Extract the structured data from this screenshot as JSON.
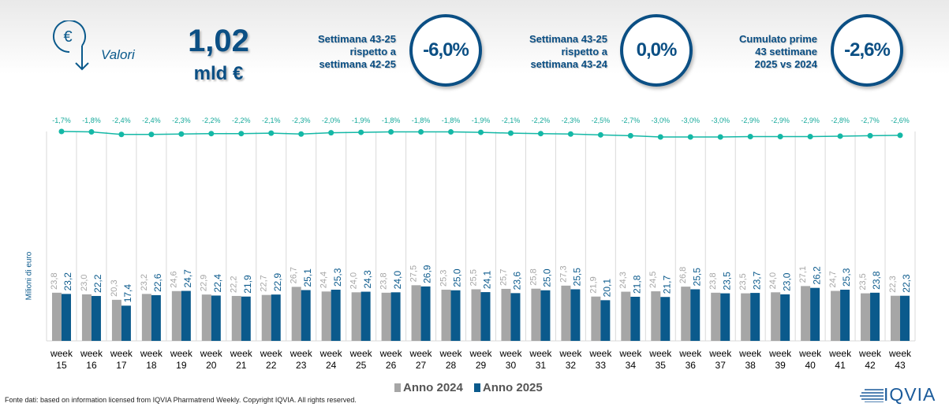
{
  "header": {
    "icon": "euro-down-arrow-icon",
    "section_label": "Valori",
    "total_value": "1,02",
    "total_unit": "mld €",
    "kpis": [
      {
        "label_lines": [
          "Settimana 43-25",
          "rispetto a",
          "settimana 42-25"
        ],
        "value": "-6,0%"
      },
      {
        "label_lines": [
          "Settimana 43-25",
          "rispetto a",
          "settimana 43-24"
        ],
        "value": "0,0%"
      },
      {
        "label_lines": [
          "Cumulato prime",
          "43 settimane",
          "2025 vs 2024"
        ],
        "value": "-2,6%"
      }
    ]
  },
  "chart_data": {
    "type": "bar",
    "ylabel": "Milioni di euro",
    "categories": [
      "week 15",
      "week 16",
      "week 17",
      "week 18",
      "week 19",
      "week 20",
      "week 21",
      "week 22",
      "week 23",
      "week 24",
      "week 25",
      "week 26",
      "week 27",
      "week 28",
      "week 29",
      "week 30",
      "week 31",
      "week 32",
      "week 33",
      "week 34",
      "week 35",
      "week 36",
      "week 37",
      "week 38",
      "week 39",
      "week 40",
      "week 41",
      "week 42",
      "week 43"
    ],
    "series": [
      {
        "name": "Anno 2024",
        "color": "#a6a6a6",
        "values": [
          23.8,
          23.0,
          20.3,
          23.2,
          24.6,
          22.9,
          22.2,
          22.7,
          26.7,
          24.4,
          24.0,
          23.8,
          27.5,
          25.3,
          25.5,
          25.7,
          25.8,
          27.3,
          21.9,
          24.3,
          24.5,
          26.8,
          23.8,
          23.5,
          24.0,
          27.1,
          24.7,
          23.5,
          22.3
        ]
      },
      {
        "name": "Anno 2025",
        "color": "#0b5a8c",
        "values": [
          23.2,
          22.2,
          17.4,
          22.6,
          24.7,
          22.4,
          21.9,
          22.9,
          25.1,
          25.3,
          24.3,
          24.0,
          26.9,
          25.0,
          24.1,
          23.6,
          25.0,
          25.5,
          20.1,
          21.8,
          21.7,
          25.5,
          23.5,
          23.7,
          23.0,
          26.2,
          25.3,
          23.8,
          22.3
        ]
      }
    ],
    "cumulative_change_line": {
      "color": "#14b8a6",
      "unit": "%",
      "values": [
        -1.7,
        -1.8,
        -2.4,
        -2.4,
        -2.3,
        -2.2,
        -2.2,
        -2.1,
        -2.3,
        -2.0,
        -1.9,
        -1.8,
        -1.8,
        -1.8,
        -1.9,
        -2.1,
        -2.2,
        -2.3,
        -2.5,
        -2.7,
        -3.0,
        -3.0,
        -3.0,
        -2.9,
        -2.9,
        -2.9,
        -2.8,
        -2.7,
        -2.6
      ],
      "labels": [
        "-1,7%",
        "-1,8%",
        "-2,4%",
        "-2,4%",
        "-2,3%",
        "-2,2%",
        "-2,2%",
        "-2,1%",
        "-2,3%",
        "-2,0%",
        "-1,9%",
        "-1,8%",
        "-1,8%",
        "-1,8%",
        "-1,9%",
        "-2,1%",
        "-2,2%",
        "-2,3%",
        "-2,5%",
        "-2,7%",
        "-3,0%",
        "-3,0%",
        "-3,0%",
        "-2,9%",
        "-2,9%",
        "-2,9%",
        "-2,8%",
        "-2,7%",
        "-2,6%"
      ]
    },
    "grid": "vertical",
    "legend": "bottom"
  },
  "legend": {
    "items": [
      "Anno 2024",
      "Anno 2025"
    ]
  },
  "footer": {
    "source": "Fonte dati: based on information licensed from IQVIA Pharmatrend Weekly. Copyright IQVIA. All rights reserved.",
    "logo": "IQVIA"
  }
}
